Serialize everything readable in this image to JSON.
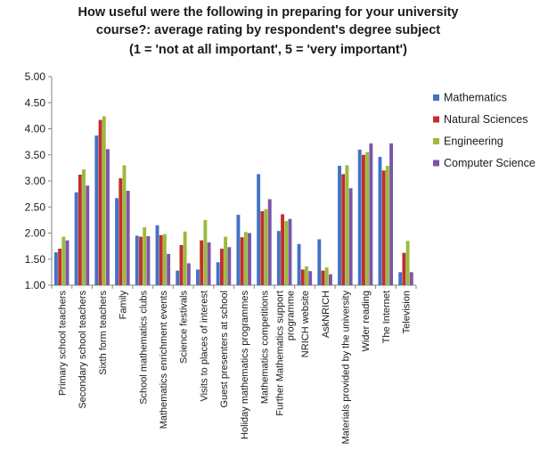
{
  "chart_data": {
    "type": "bar",
    "title_lines": [
      "How useful were the following in preparing for your university",
      "course?: average rating by respondent's degree subject",
      "(1 = 'not at all important', 5 = 'very important')"
    ],
    "xlabel": "",
    "ylabel": "",
    "ylim": [
      1.0,
      5.0
    ],
    "yticks": [
      "1.00",
      "1.50",
      "2.00",
      "2.50",
      "3.00",
      "3.50",
      "4.00",
      "4.50",
      "5.00"
    ],
    "legend_position": "right",
    "grid": false,
    "categories": [
      [
        "Primary school teachers"
      ],
      [
        "Secondary school teachers"
      ],
      [
        "Sixth form teachers"
      ],
      [
        "Family"
      ],
      [
        "School mathematics clubs"
      ],
      [
        "Mathematics enrichment events"
      ],
      [
        "Science festivals"
      ],
      [
        "Visits to places of interest"
      ],
      [
        "Guest presenters at school"
      ],
      [
        "Holiday mathematics programmes"
      ],
      [
        "Mathematics competitions"
      ],
      [
        "Further Mathematics support",
        "programme"
      ],
      [
        "NRICH website"
      ],
      [
        "AskNRICH"
      ],
      [
        "Materials provided by the university"
      ],
      [
        "Wider reading"
      ],
      [
        "The Internet"
      ],
      [
        "Television"
      ]
    ],
    "series": [
      {
        "name": "Mathematics",
        "color": "#4472c4",
        "values": [
          1.63,
          2.78,
          3.87,
          2.67,
          1.95,
          2.15,
          1.28,
          1.3,
          1.44,
          2.35,
          3.13,
          2.04,
          1.79,
          1.88,
          3.29,
          3.6,
          3.46,
          1.25
        ]
      },
      {
        "name": "Natural Sciences",
        "color": "#c0302b",
        "values": [
          1.7,
          3.12,
          4.17,
          3.05,
          1.93,
          1.96,
          1.77,
          1.86,
          1.7,
          1.92,
          2.42,
          2.36,
          1.3,
          1.28,
          3.13,
          3.5,
          3.2,
          1.62
        ]
      },
      {
        "name": "Engineering",
        "color": "#9bbb3c",
        "values": [
          1.93,
          3.22,
          4.24,
          3.3,
          2.11,
          1.98,
          2.03,
          2.25,
          1.93,
          2.02,
          2.46,
          2.23,
          1.36,
          1.34,
          3.3,
          3.55,
          3.29,
          1.85
        ]
      },
      {
        "name": "Computer Science",
        "color": "#7b56a8",
        "values": [
          1.86,
          2.91,
          3.61,
          2.81,
          1.94,
          1.6,
          1.42,
          1.82,
          1.73,
          2.0,
          2.65,
          2.27,
          1.27,
          1.21,
          2.86,
          3.72,
          3.72,
          1.25
        ]
      }
    ]
  }
}
